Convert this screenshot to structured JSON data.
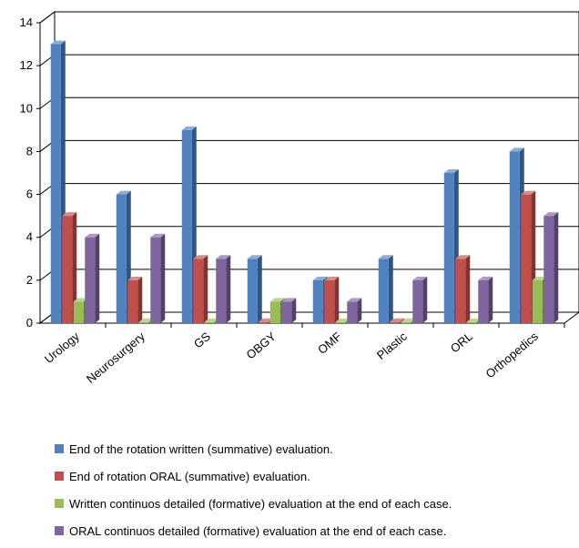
{
  "chart_data": {
    "type": "bar",
    "categories": [
      "Urology",
      "Neurosurgery",
      "GS",
      "OBGY",
      "OMF",
      "Plastic",
      "ORL",
      "Orthopedics"
    ],
    "series": [
      {
        "name": "End of the rotation written (summative) evaluation.",
        "color": "#4F81BD",
        "values": [
          13,
          6,
          9,
          3,
          2,
          3,
          7,
          8
        ]
      },
      {
        "name": "End of rotation ORAL (summative) evaluation.",
        "color": "#C0504D",
        "values": [
          5,
          2,
          3,
          0,
          2,
          0,
          3,
          6
        ]
      },
      {
        "name": "Written continuos detailed (formative) evaluation at the end of each case.",
        "color": "#9BBB59",
        "values": [
          1,
          0,
          0,
          1,
          0,
          0,
          0,
          2
        ]
      },
      {
        "name": "ORAL continuos detailed (formative) evaluation at the end of each case.",
        "color": "#8064A2",
        "values": [
          4,
          4,
          3,
          1,
          1,
          2,
          2,
          5
        ]
      }
    ],
    "ylim": [
      0,
      14
    ],
    "yticks": [
      0,
      2,
      4,
      6,
      8,
      10,
      12,
      14
    ],
    "grid": true,
    "legend_position": "bottom",
    "title": "",
    "xlabel": "",
    "ylabel": ""
  }
}
